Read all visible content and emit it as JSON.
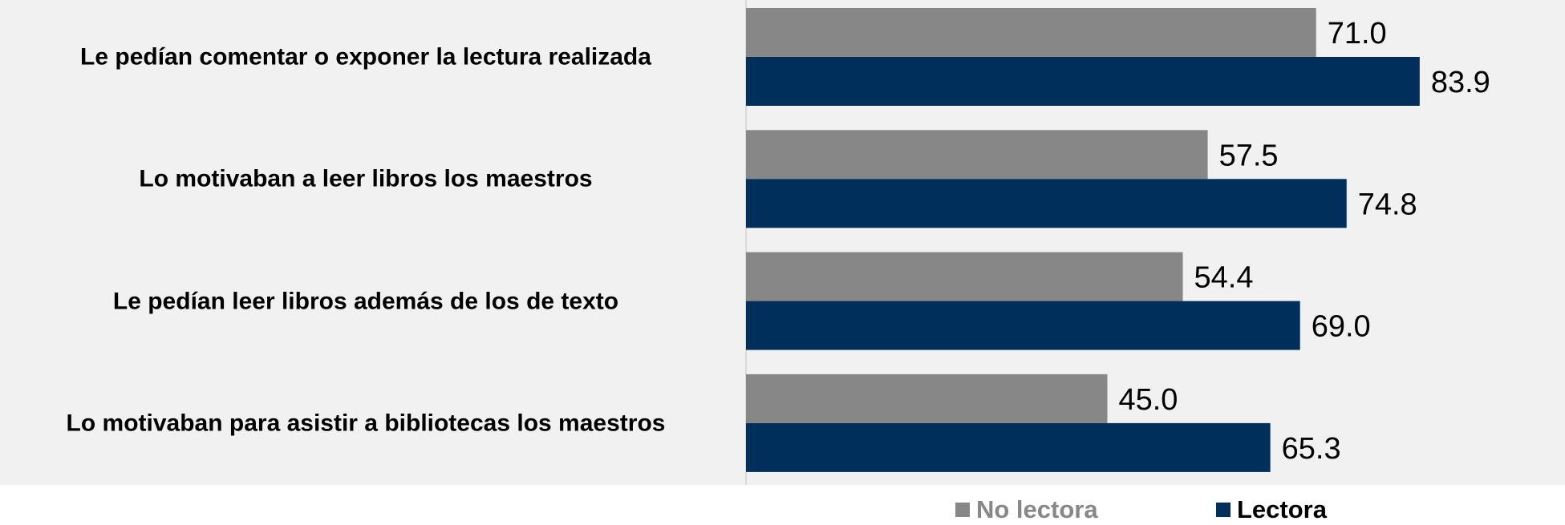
{
  "chart_data": {
    "type": "bar",
    "orientation": "horizontal",
    "categories": [
      "Le pedían comentar o exponer la lectura realizada",
      "Lo motivaban a leer libros los maestros",
      "Le pedían leer libros además de los de texto",
      "Lo motivaban para asistir a bibliotecas los maestros"
    ],
    "series": [
      {
        "name": "No lectora",
        "values": [
          71.0,
          57.5,
          54.4,
          45.0
        ],
        "color": "#878787"
      },
      {
        "name": "Lectora",
        "values": [
          83.9,
          74.8,
          69.0,
          65.3
        ],
        "color": "#002f5b"
      }
    ],
    "xlim": [
      0,
      100
    ],
    "grid": false,
    "legend_position": "bottom",
    "data_labels": true
  },
  "legend": {
    "no_lectora": "No lectora",
    "lectora": "Lectora"
  }
}
